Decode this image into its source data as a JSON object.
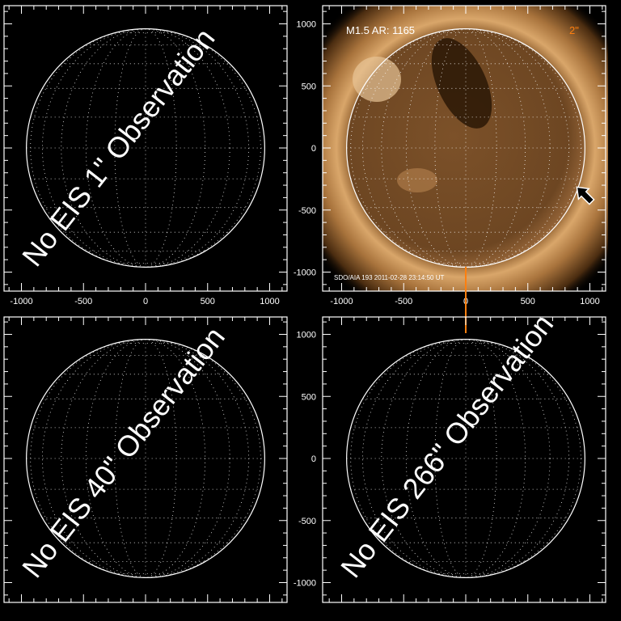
{
  "chart_data": [
    {
      "type": "heatmap",
      "panel": "top-left",
      "overlay_text": "No EIS 1\" Observation",
      "xlim": [
        -1150,
        1150
      ],
      "ylim": [
        -1150,
        1150
      ],
      "xticks": [
        "-1000",
        "-500",
        "0",
        "500",
        "1000"
      ],
      "yticks": [
        "1000",
        "500",
        "0",
        "-500",
        "-1000"
      ],
      "show_image": false
    },
    {
      "type": "heatmap",
      "panel": "top-right",
      "annotation_left": "M1.5 AR: 1165",
      "annotation_right": "2\"",
      "footer": "SDO/AIA 193   2011-02-28 23:14:50 UT",
      "xlim": [
        -1150,
        1150
      ],
      "ylim": [
        -1150,
        1150
      ],
      "xticks": [
        "-1000",
        "-500",
        "0",
        "500",
        "1000"
      ],
      "yticks": [
        "1000",
        "500",
        "0",
        "-500",
        "-1000"
      ],
      "show_image": true,
      "arrow_position_arcsec": [
        950,
        -370
      ]
    },
    {
      "type": "heatmap",
      "panel": "bottom-left",
      "overlay_text": "No EIS 40\" Observation",
      "xlim": [
        -1150,
        1150
      ],
      "ylim": [
        -1150,
        1150
      ],
      "xticks": [],
      "yticks": [
        "1000",
        "500",
        "0",
        "-500",
        "-1000"
      ],
      "show_image": false
    },
    {
      "type": "heatmap",
      "panel": "bottom-right",
      "overlay_text": "No EIS 266\" Observation",
      "xlim": [
        -1150,
        1150
      ],
      "ylim": [
        -1150,
        1150
      ],
      "xticks": [],
      "yticks": [
        "1000",
        "500",
        "0",
        "-500",
        "-1000"
      ],
      "show_image": false
    }
  ],
  "solar_radius_arcsec": 960,
  "colors": {
    "axes": "#ffffff",
    "highlight": "#ff7f0e",
    "sun_core": "#6b4420",
    "corona": "#c89358"
  }
}
